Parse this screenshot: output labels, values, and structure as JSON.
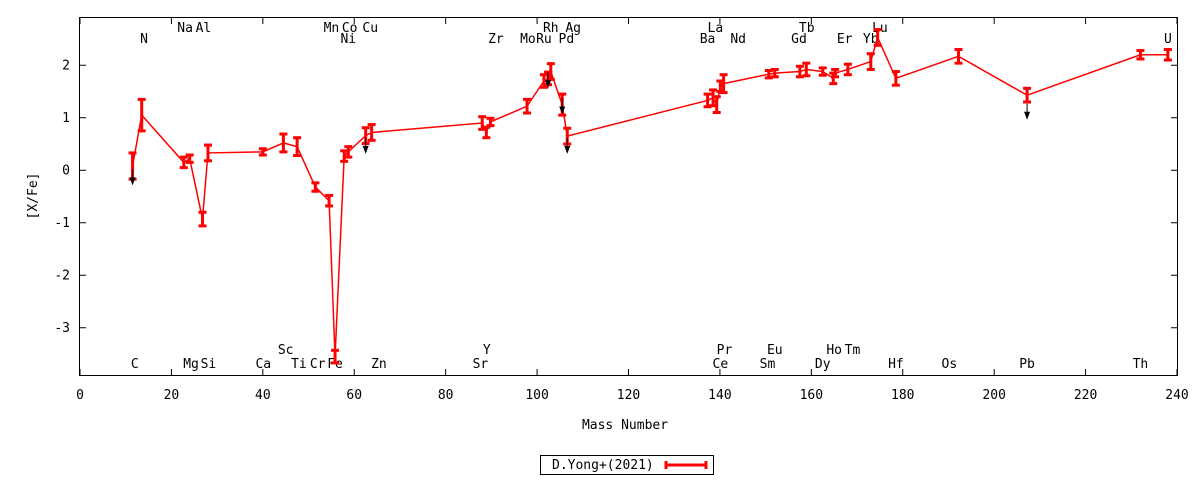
{
  "chart_data": {
    "type": "line",
    "xlabel": "Mass Number",
    "ylabel": "[X/Fe]",
    "xlim": [
      0,
      240
    ],
    "ylim": [
      -3.9,
      2.9
    ],
    "xticks": [
      0,
      20,
      40,
      60,
      80,
      100,
      120,
      140,
      160,
      180,
      200,
      220,
      240
    ],
    "yticks": [
      -3,
      -2,
      -1,
      0,
      1,
      2
    ],
    "grid": false,
    "legend_position": "bottom-center",
    "series": [
      {
        "name": "D.Yong+(2021)",
        "color": "#ff0000",
        "points": [
          {
            "x": 11.5,
            "y": 0.08,
            "err": 0.25
          },
          {
            "x": 13.5,
            "y": 1.05,
            "err": 0.3
          },
          {
            "x": 22.7,
            "y": 0.15,
            "err": 0.1
          },
          {
            "x": 24.0,
            "y": 0.22,
            "err": 0.07
          },
          {
            "x": 26.8,
            "y": -0.93,
            "err": 0.13
          },
          {
            "x": 28.0,
            "y": 0.33,
            "err": 0.15
          },
          {
            "x": 40.0,
            "y": 0.35,
            "err": 0.06
          },
          {
            "x": 44.5,
            "y": 0.52,
            "err": 0.17
          },
          {
            "x": 47.5,
            "y": 0.45,
            "err": 0.17
          },
          {
            "x": 51.5,
            "y": -0.32,
            "err": 0.08
          },
          {
            "x": 54.5,
            "y": -0.58,
            "err": 0.1
          },
          {
            "x": 55.8,
            "y": -3.55,
            "err": 0.12
          },
          {
            "x": 57.8,
            "y": 0.27,
            "err": 0.1
          },
          {
            "x": 58.7,
            "y": 0.35,
            "err": 0.1
          },
          {
            "x": 62.5,
            "y": 0.66,
            "err": 0.15
          },
          {
            "x": 63.8,
            "y": 0.72,
            "err": 0.15
          },
          {
            "x": 88.0,
            "y": 0.9,
            "err": 0.12
          },
          {
            "x": 88.9,
            "y": 0.72,
            "err": 0.1
          },
          {
            "x": 89.8,
            "y": 0.92,
            "err": 0.07
          },
          {
            "x": 97.8,
            "y": 1.22,
            "err": 0.13
          },
          {
            "x": 101.5,
            "y": 1.7,
            "err": 0.12
          },
          {
            "x": 102.4,
            "y": 1.75,
            "err": 0.12
          },
          {
            "x": 103.0,
            "y": 1.88,
            "err": 0.15
          },
          {
            "x": 105.5,
            "y": 1.25,
            "err": 0.2
          },
          {
            "x": 106.6,
            "y": 0.65,
            "err": 0.15
          },
          {
            "x": 137.3,
            "y": 1.33,
            "err": 0.12
          },
          {
            "x": 138.5,
            "y": 1.38,
            "err": 0.15
          },
          {
            "x": 139.3,
            "y": 1.25,
            "err": 0.15
          },
          {
            "x": 140.1,
            "y": 1.6,
            "err": 0.1
          },
          {
            "x": 140.8,
            "y": 1.65,
            "err": 0.17
          },
          {
            "x": 150.7,
            "y": 1.83,
            "err": 0.07
          },
          {
            "x": 152.0,
            "y": 1.85,
            "err": 0.07
          },
          {
            "x": 157.5,
            "y": 1.88,
            "err": 0.1
          },
          {
            "x": 158.9,
            "y": 1.92,
            "err": 0.12
          },
          {
            "x": 162.5,
            "y": 1.88,
            "err": 0.07
          },
          {
            "x": 164.8,
            "y": 1.75,
            "err": 0.1
          },
          {
            "x": 165.2,
            "y": 1.85,
            "err": 0.07
          },
          {
            "x": 168.0,
            "y": 1.92,
            "err": 0.1
          },
          {
            "x": 173.0,
            "y": 2.07,
            "err": 0.15
          },
          {
            "x": 174.5,
            "y": 2.53,
            "err": 0.15
          },
          {
            "x": 178.5,
            "y": 1.75,
            "err": 0.13
          },
          {
            "x": 192.2,
            "y": 2.17,
            "err": 0.13
          },
          {
            "x": 207.2,
            "y": 1.43,
            "err": 0.13
          },
          {
            "x": 232.0,
            "y": 2.2,
            "err": 0.08
          },
          {
            "x": 238.0,
            "y": 2.2,
            "err": 0.1
          }
        ]
      }
    ],
    "upper_limits": [
      {
        "x": 11.5,
        "y": -0.25
      },
      {
        "x": 62.5,
        "y": 0.35
      },
      {
        "x": 102.4,
        "y": 1.6
      },
      {
        "x": 105.5,
        "y": 1.1
      },
      {
        "x": 106.6,
        "y": 0.35
      },
      {
        "x": 207.2,
        "y": 1.0
      }
    ],
    "element_labels": [
      {
        "text": "N",
        "x": 14,
        "row": "top2"
      },
      {
        "text": "Na",
        "x": 23,
        "row": "top1"
      },
      {
        "text": "Al",
        "x": 27,
        "row": "top1"
      },
      {
        "text": "Mn",
        "x": 55,
        "row": "top1"
      },
      {
        "text": "Co",
        "x": 59,
        "row": "top1"
      },
      {
        "text": "Cu",
        "x": 63.5,
        "row": "top1"
      },
      {
        "text": "Ni",
        "x": 58.7,
        "row": "top2"
      },
      {
        "text": "Zr",
        "x": 91,
        "row": "top2"
      },
      {
        "text": "Rh",
        "x": 103,
        "row": "top1"
      },
      {
        "text": "Ag",
        "x": 107.9,
        "row": "top1"
      },
      {
        "text": "Mo",
        "x": 98,
        "row": "top2"
      },
      {
        "text": "Ru",
        "x": 101.5,
        "row": "top2"
      },
      {
        "text": "Pd",
        "x": 106.4,
        "row": "top2"
      },
      {
        "text": "La",
        "x": 139,
        "row": "top1"
      },
      {
        "text": "Ba",
        "x": 137.3,
        "row": "top2"
      },
      {
        "text": "Nd",
        "x": 144,
        "row": "top2"
      },
      {
        "text": "Tb",
        "x": 159,
        "row": "top1"
      },
      {
        "text": "Gd",
        "x": 157.3,
        "row": "top2"
      },
      {
        "text": "Er",
        "x": 167.3,
        "row": "top2"
      },
      {
        "text": "Lu",
        "x": 175,
        "row": "top1"
      },
      {
        "text": "Yb",
        "x": 173,
        "row": "top2"
      },
      {
        "text": "U",
        "x": 238,
        "row": "top2"
      },
      {
        "text": "Sc",
        "x": 45,
        "row": "bot1"
      },
      {
        "text": "Y",
        "x": 89,
        "row": "bot1"
      },
      {
        "text": "Pr",
        "x": 141,
        "row": "bot1"
      },
      {
        "text": "Eu",
        "x": 152,
        "row": "bot1"
      },
      {
        "text": "Ho",
        "x": 165,
        "row": "bot1"
      },
      {
        "text": "Tm",
        "x": 169,
        "row": "bot1"
      },
      {
        "text": "C",
        "x": 12,
        "row": "bot2"
      },
      {
        "text": "Mg",
        "x": 24.3,
        "row": "bot2"
      },
      {
        "text": "Si",
        "x": 28.1,
        "row": "bot2"
      },
      {
        "text": "Ca",
        "x": 40.1,
        "row": "bot2"
      },
      {
        "text": "Ti",
        "x": 47.9,
        "row": "bot2"
      },
      {
        "text": "Cr",
        "x": 52,
        "row": "bot2"
      },
      {
        "text": "Fe",
        "x": 55.8,
        "row": "bot2"
      },
      {
        "text": "Zn",
        "x": 65.4,
        "row": "bot2"
      },
      {
        "text": "Sr",
        "x": 87.6,
        "row": "bot2"
      },
      {
        "text": "Ce",
        "x": 140.1,
        "row": "bot2"
      },
      {
        "text": "Sm",
        "x": 150.4,
        "row": "bot2"
      },
      {
        "text": "Dy",
        "x": 162.5,
        "row": "bot2"
      },
      {
        "text": "Hf",
        "x": 178.5,
        "row": "bot2"
      },
      {
        "text": "Os",
        "x": 190.2,
        "row": "bot2"
      },
      {
        "text": "Pb",
        "x": 207.2,
        "row": "bot2"
      },
      {
        "text": "Th",
        "x": 232,
        "row": "bot2"
      }
    ]
  }
}
